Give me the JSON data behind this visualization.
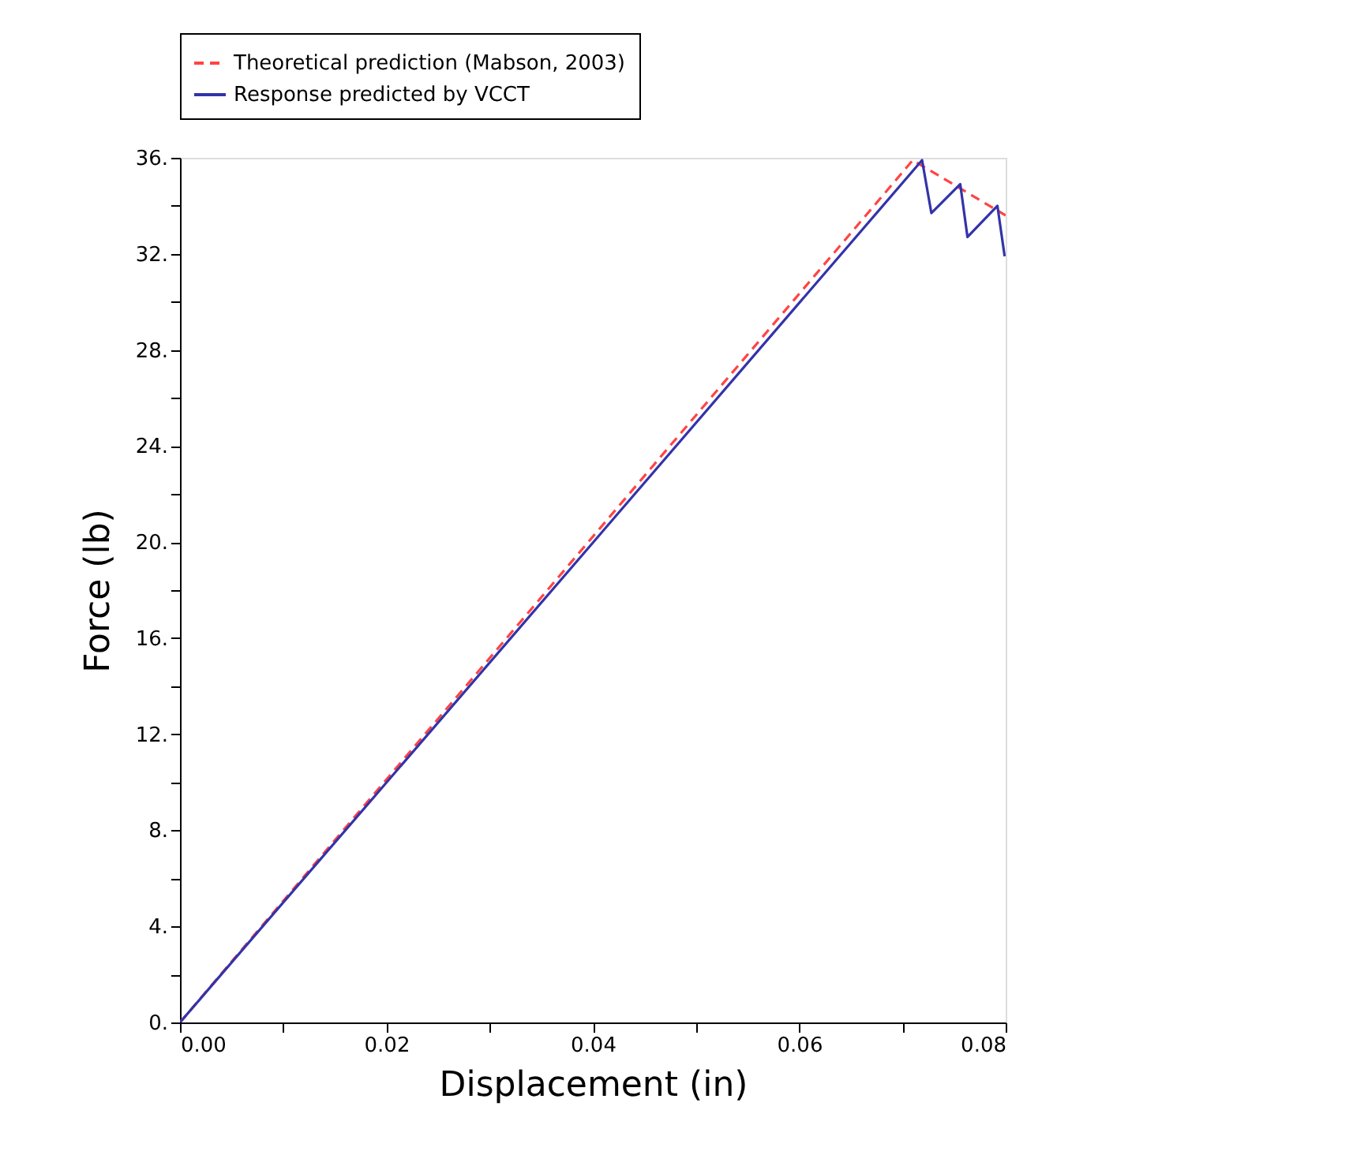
{
  "chart_data": {
    "type": "line",
    "xlabel": "Displacement (in)",
    "ylabel": "Force (lb)",
    "series": [
      {
        "name": "Theoretical prediction (Mabson, 2003)",
        "color": "#ff4444",
        "line_style": "dashed",
        "x": [
          0,
          0.071,
          0.08
        ],
        "values": [
          0,
          35.9,
          33.6
        ]
      },
      {
        "name": "Response predicted by VCCT",
        "color": "#3333aa",
        "line_style": "solid",
        "x": [
          0,
          0.0719,
          0.0728,
          0.0756,
          0.0763,
          0.0792,
          0.0799
        ],
        "values": [
          0,
          35.9,
          33.7,
          34.9,
          32.7,
          34.0,
          31.9
        ]
      }
    ],
    "xlim": [
      0,
      0.08
    ],
    "ylim": [
      0,
      36
    ],
    "xticks": [
      {
        "value": 0,
        "label": "0.00"
      },
      {
        "value": 0.01,
        "label": null
      },
      {
        "value": 0.02,
        "label": "0.02"
      },
      {
        "value": 0.03,
        "label": null
      },
      {
        "value": 0.04,
        "label": "0.04"
      },
      {
        "value": 0.05,
        "label": null
      },
      {
        "value": 0.06,
        "label": "0.06"
      },
      {
        "value": 0.07,
        "label": null
      },
      {
        "value": 0.08,
        "label": "0.08"
      }
    ],
    "yticks": [
      {
        "value": 0,
        "label": "0."
      },
      {
        "value": 2,
        "label": null
      },
      {
        "value": 4,
        "label": "4."
      },
      {
        "value": 6,
        "label": null
      },
      {
        "value": 8,
        "label": "8."
      },
      {
        "value": 10,
        "label": null
      },
      {
        "value": 12,
        "label": "12."
      },
      {
        "value": 14,
        "label": null
      },
      {
        "value": 16,
        "label": "16."
      },
      {
        "value": 18,
        "label": null
      },
      {
        "value": 20,
        "label": "20."
      },
      {
        "value": 22,
        "label": null
      },
      {
        "value": 24,
        "label": "24."
      },
      {
        "value": 26,
        "label": null
      },
      {
        "value": 28,
        "label": "28."
      },
      {
        "value": 30,
        "label": null
      },
      {
        "value": 32,
        "label": "32."
      },
      {
        "value": 34,
        "label": null
      },
      {
        "value": 36,
        "label": "36."
      }
    ],
    "grid": false,
    "legend": "top",
    "marker": "none"
  }
}
